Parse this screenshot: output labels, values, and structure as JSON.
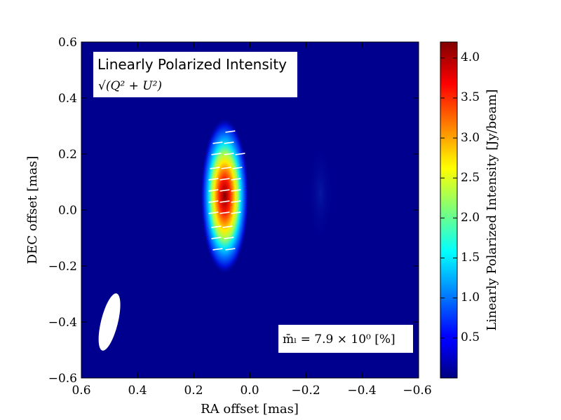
{
  "chart_data": {
    "type": "heatmap",
    "title": "Linearly Polarized Intensity",
    "subtitle": "√(Q² + U²)",
    "xlabel": "RA offset [mas]",
    "ylabel": "DEC offset [mas]",
    "xlim": [
      0.6,
      -0.6
    ],
    "ylim": [
      -0.6,
      0.6
    ],
    "x_ticks": [
      "0.6",
      "0.4",
      "0.2",
      "0.0",
      "−0.2",
      "−0.4",
      "−0.6"
    ],
    "y_ticks": [
      "0.6",
      "0.4",
      "0.2",
      "0.0",
      "−0.2",
      "−0.4",
      "−0.6"
    ],
    "colorbar": {
      "label": "Linearly Polarized Intensity [Jy/beam]",
      "range": [
        0.0,
        4.2
      ],
      "ticks": [
        "0.5",
        "1.0",
        "1.5",
        "2.0",
        "2.5",
        "3.0",
        "3.5",
        "4.0"
      ],
      "colormap": "jet"
    },
    "source": {
      "center_ra": 0.09,
      "center_dec": 0.05,
      "sigma_ra": 0.033,
      "sigma_dec": 0.14,
      "peak": 4.2
    },
    "beam": {
      "center_ra": 0.5,
      "center_dec": -0.4,
      "major": 0.21,
      "minor": 0.06,
      "pa_deg": 14
    },
    "annotation": "m̄ₗ =  7.9 × 10⁰ [%]",
    "evpa_vectors": [
      {
        "ra": 0.07,
        "dec": 0.28
      },
      {
        "ra": 0.115,
        "dec": 0.24
      },
      {
        "ra": 0.075,
        "dec": 0.24
      },
      {
        "ra": 0.12,
        "dec": 0.2
      },
      {
        "ra": 0.075,
        "dec": 0.2
      },
      {
        "ra": 0.035,
        "dec": 0.2
      },
      {
        "ra": 0.125,
        "dec": 0.15
      },
      {
        "ra": 0.085,
        "dec": 0.15
      },
      {
        "ra": 0.045,
        "dec": 0.15
      },
      {
        "ra": 0.13,
        "dec": 0.11
      },
      {
        "ra": 0.09,
        "dec": 0.11
      },
      {
        "ra": 0.05,
        "dec": 0.11
      },
      {
        "ra": 0.13,
        "dec": 0.07
      },
      {
        "ra": 0.09,
        "dec": 0.07
      },
      {
        "ra": 0.05,
        "dec": 0.07
      },
      {
        "ra": 0.13,
        "dec": 0.03
      },
      {
        "ra": 0.09,
        "dec": 0.03
      },
      {
        "ra": 0.05,
        "dec": 0.03
      },
      {
        "ra": 0.13,
        "dec": -0.01
      },
      {
        "ra": 0.09,
        "dec": -0.01
      },
      {
        "ra": 0.05,
        "dec": -0.01
      },
      {
        "ra": 0.12,
        "dec": -0.06
      },
      {
        "ra": 0.08,
        "dec": -0.06
      },
      {
        "ra": 0.12,
        "dec": -0.1
      },
      {
        "ra": 0.075,
        "dec": -0.1
      },
      {
        "ra": 0.115,
        "dec": -0.14
      },
      {
        "ra": 0.07,
        "dec": -0.14
      }
    ],
    "evpa_angle_deg": -8
  }
}
